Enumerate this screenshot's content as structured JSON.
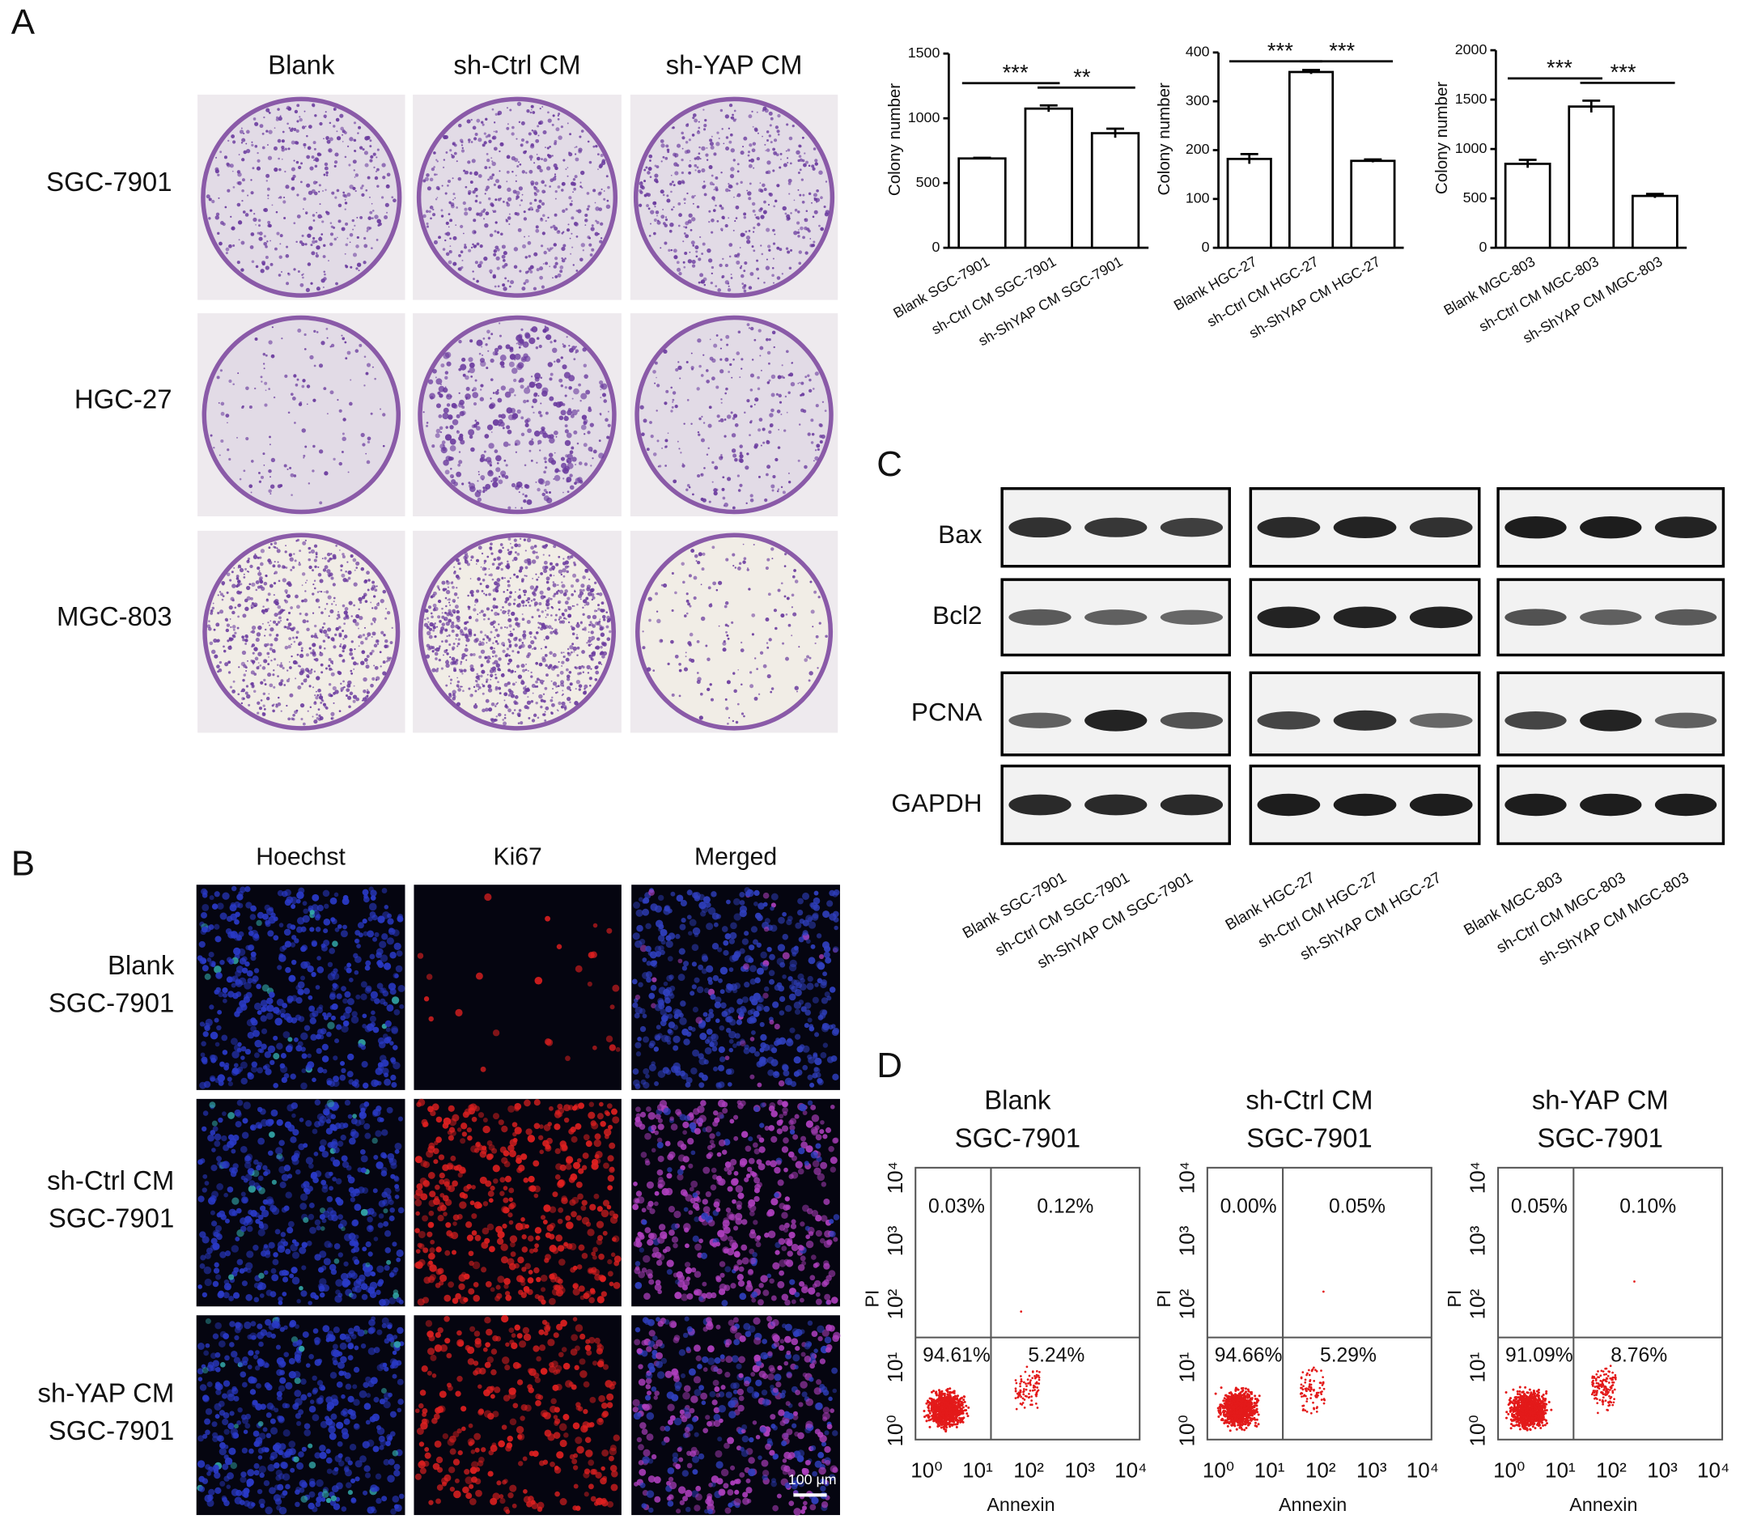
{
  "panel_labels": [
    "A",
    "B",
    "C",
    "D"
  ],
  "panel_a": {
    "columns": [
      "Blank",
      "sh-Ctrl CM",
      "sh-YAP CM"
    ],
    "rows": [
      "SGC-7901",
      "HGC-27",
      "MGC-803"
    ]
  },
  "chart_data": [
    {
      "type": "bar",
      "ylabel": "Colony number",
      "categories": [
        "Blank SGC-7901",
        "sh-Ctrl CM SGC-7901",
        "sh-ShYAP CM SGC-7901"
      ],
      "values": [
        690,
        1075,
        885
      ],
      "errors": [
        5,
        25,
        35
      ],
      "ylim": [
        0,
        1500
      ],
      "yticks": [
        0,
        500,
        1000,
        1500
      ],
      "annotations": [
        "***",
        "**"
      ],
      "color": "#ffffff"
    },
    {
      "type": "bar",
      "ylabel": "Colony number",
      "categories": [
        "Blank HGC-27",
        "sh-Ctrl CM HGC-27",
        "sh-ShYAP CM HGC-27"
      ],
      "values": [
        182,
        360,
        178
      ],
      "errors": [
        10,
        4,
        3
      ],
      "ylim": [
        0,
        400
      ],
      "yticks": [
        0,
        100,
        200,
        300,
        400
      ],
      "annotations": [
        "***",
        "***"
      ],
      "color": "#ffffff"
    },
    {
      "type": "bar",
      "ylabel": "Colony number",
      "categories": [
        "Blank MGC-803",
        "sh-Ctrl CM MGC-803",
        "sh-ShYAP CM MGC-803"
      ],
      "values": [
        850,
        1430,
        525
      ],
      "errors": [
        40,
        60,
        20
      ],
      "ylim": [
        0,
        2000
      ],
      "yticks": [
        0,
        500,
        1000,
        1500,
        2000
      ],
      "annotations": [
        "***",
        "***"
      ],
      "color": "#ffffff"
    }
  ],
  "panel_b": {
    "columns": [
      "Hoechst",
      "Ki67",
      "Merged"
    ],
    "rows": [
      [
        "Blank",
        "SGC-7901"
      ],
      [
        "sh-Ctrl CM",
        "SGC-7901"
      ],
      [
        "sh-YAP CM",
        "SGC-7901"
      ]
    ],
    "scale_bar": "100 μm"
  },
  "panel_c": {
    "proteins": [
      "Bax",
      "Bcl2",
      "PCNA",
      "GAPDH"
    ],
    "lanes": [
      [
        "Blank SGC-7901",
        "sh-Ctrl CM SGC-7901",
        "sh-ShYAP CM SGC-7901"
      ],
      [
        "Blank HGC-27",
        "sh-Ctrl CM HGC-27",
        "sh-ShYAP CM HGC-27"
      ],
      [
        "Blank MGC-803",
        "sh-Ctrl CM MGC-803",
        "sh-ShYAP CM MGC-803"
      ]
    ]
  },
  "panel_d": {
    "xlabel": "Annexin",
    "ylabel": "PI",
    "xticks": [
      "10⁰",
      "10¹",
      "10²",
      "10³",
      "10⁴"
    ],
    "yticks": [
      "10⁰",
      "10¹",
      "10²",
      "10³",
      "10⁴"
    ],
    "plots": [
      {
        "title": [
          "Blank",
          "SGC-7901"
        ],
        "quadrants": [
          "0.03%",
          "0.12%",
          "94.61%",
          "5.24%"
        ]
      },
      {
        "title": [
          "sh-Ctrl CM",
          "SGC-7901"
        ],
        "quadrants": [
          "0.00%",
          "0.05%",
          "94.66%",
          "5.29%"
        ]
      },
      {
        "title": [
          "sh-YAP CM",
          "SGC-7901"
        ],
        "quadrants": [
          "0.05%",
          "0.10%",
          "91.09%",
          "8.76%"
        ]
      }
    ]
  }
}
